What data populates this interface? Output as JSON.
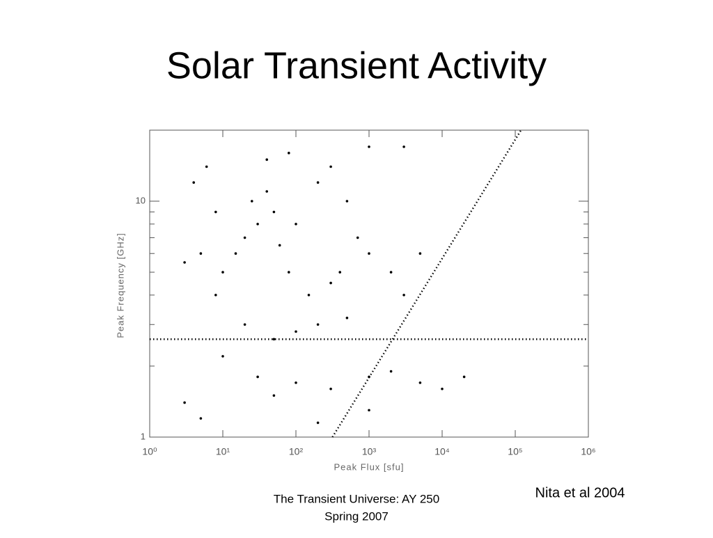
{
  "slide": {
    "title": "Solar Transient Activity",
    "footer": [
      "The Transient Universe:  AY 250",
      "Spring 2007"
    ],
    "credit": "Nita et al 2004"
  },
  "chart_data": {
    "type": "scatter",
    "x_label": "Peak Flux [sfu]",
    "y_label": "Peak Frequency [GHz]",
    "log_x": true,
    "log_y": true,
    "xlim": [
      1,
      1000000
    ],
    "ylim": [
      1,
      20
    ],
    "xticks": [
      {
        "value": 1,
        "label": "10⁰"
      },
      {
        "value": 10,
        "label": "10¹"
      },
      {
        "value": 100,
        "label": "10²"
      },
      {
        "value": 1000,
        "label": "10³"
      },
      {
        "value": 10000,
        "label": "10⁴"
      },
      {
        "value": 100000,
        "label": "10⁵"
      },
      {
        "value": 1000000,
        "label": "10⁶"
      }
    ],
    "yticks": [
      1,
      10
    ],
    "yminorticks": [
      2,
      3,
      4,
      5,
      6,
      7,
      8,
      9,
      20
    ],
    "series": [
      {
        "color": "#000000",
        "x": [
          30,
          50,
          20,
          40,
          15,
          60,
          100,
          200,
          300,
          25,
          10,
          8,
          5,
          3,
          80,
          150,
          400,
          1000,
          2000,
          5000,
          3000,
          500,
          200,
          100,
          50,
          20,
          10,
          30,
          50,
          100,
          300,
          1000,
          2000,
          5000,
          10000,
          20000,
          3,
          5,
          200,
          1000,
          40,
          80,
          1000,
          3000,
          8,
          4,
          6,
          500,
          700,
          300
        ],
        "y": [
          8,
          9,
          7,
          11,
          6,
          6.5,
          8,
          12,
          14,
          10,
          5,
          4,
          6,
          5.5,
          5,
          4,
          5,
          6,
          5,
          6,
          4,
          3.2,
          3,
          2.8,
          2.6,
          3,
          2.2,
          1.8,
          1.5,
          1.7,
          1.6,
          1.8,
          1.9,
          1.7,
          1.6,
          1.8,
          1.4,
          1.2,
          1.15,
          1.3,
          15,
          16,
          17,
          17,
          9,
          12,
          14,
          10,
          7,
          4.5
        ]
      }
    ],
    "lines": [
      {
        "color": "#000000",
        "x": [
          1,
          1000000
        ],
        "y": [
          2.6,
          2.6
        ]
      },
      {
        "color": "#000000",
        "x": [
          316,
          120000
        ],
        "y": [
          1,
          20
        ]
      }
    ]
  }
}
